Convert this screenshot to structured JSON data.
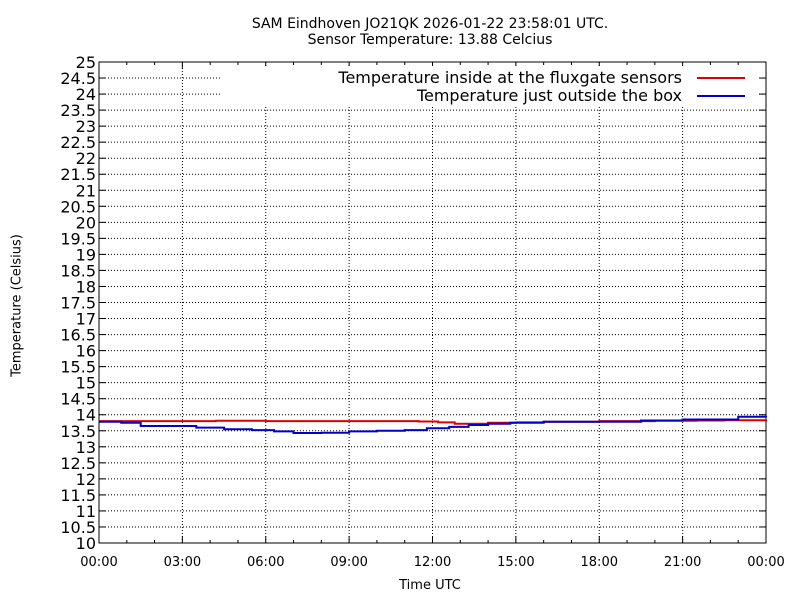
{
  "chart_data": {
    "type": "line",
    "title": "SAM Eindhoven JO21QK 2026-01-22 23:58:01 UTC.",
    "subtitle": "Sensor Temperature: 13.88 Celcius",
    "xlabel": "Time UTC",
    "ylabel": "Temperature (Celsius)",
    "ylim": [
      10,
      25
    ],
    "xlim": [
      0,
      24
    ],
    "x_tick_labels": [
      "00:00",
      "03:00",
      "06:00",
      "09:00",
      "12:00",
      "15:00",
      "18:00",
      "21:00",
      "00:00"
    ],
    "y_tick_labels": [
      "10",
      "10.5",
      "11",
      "11.5",
      "12",
      "12.5",
      "13",
      "13.5",
      "14",
      "14.5",
      "15",
      "15.5",
      "16",
      "16.5",
      "17",
      "17.5",
      "18",
      "18.5",
      "19",
      "19.5",
      "20",
      "20.5",
      "21",
      "21.5",
      "22",
      "22.5",
      "23",
      "23.5",
      "24",
      "24.5",
      "25"
    ],
    "grid": true,
    "legend_position": "top-right",
    "series": [
      {
        "name": "Temperature inside at the fluxgate sensors",
        "color": "#dd0000",
        "points": [
          [
            0,
            13.8
          ],
          [
            3,
            13.8
          ],
          [
            4.2,
            13.81
          ],
          [
            6,
            13.8
          ],
          [
            10,
            13.8
          ],
          [
            11.5,
            13.79
          ],
          [
            12.2,
            13.76
          ],
          [
            12.8,
            13.72
          ],
          [
            13.5,
            13.72
          ],
          [
            14,
            13.75
          ],
          [
            15,
            13.76
          ],
          [
            16,
            13.78
          ],
          [
            18,
            13.8
          ],
          [
            20,
            13.81
          ],
          [
            21.5,
            13.82
          ],
          [
            22.5,
            13.83
          ],
          [
            24,
            13.85
          ]
        ]
      },
      {
        "name": "Temperature just outside the box",
        "color": "#0000cc",
        "points": [
          [
            0,
            13.78
          ],
          [
            0.8,
            13.75
          ],
          [
            1.5,
            13.65
          ],
          [
            2.8,
            13.65
          ],
          [
            3.5,
            13.6
          ],
          [
            4.5,
            13.55
          ],
          [
            5.5,
            13.52
          ],
          [
            6.3,
            13.48
          ],
          [
            7,
            13.43
          ],
          [
            8,
            13.44
          ],
          [
            9,
            13.48
          ],
          [
            10,
            13.5
          ],
          [
            11,
            13.52
          ],
          [
            11.8,
            13.58
          ],
          [
            12.6,
            13.62
          ],
          [
            13.3,
            13.68
          ],
          [
            14,
            13.72
          ],
          [
            14.8,
            13.75
          ],
          [
            16,
            13.78
          ],
          [
            18,
            13.78
          ],
          [
            19.5,
            13.82
          ],
          [
            21,
            13.85
          ],
          [
            22.5,
            13.85
          ],
          [
            23,
            13.94
          ],
          [
            24,
            13.92
          ]
        ]
      }
    ]
  }
}
